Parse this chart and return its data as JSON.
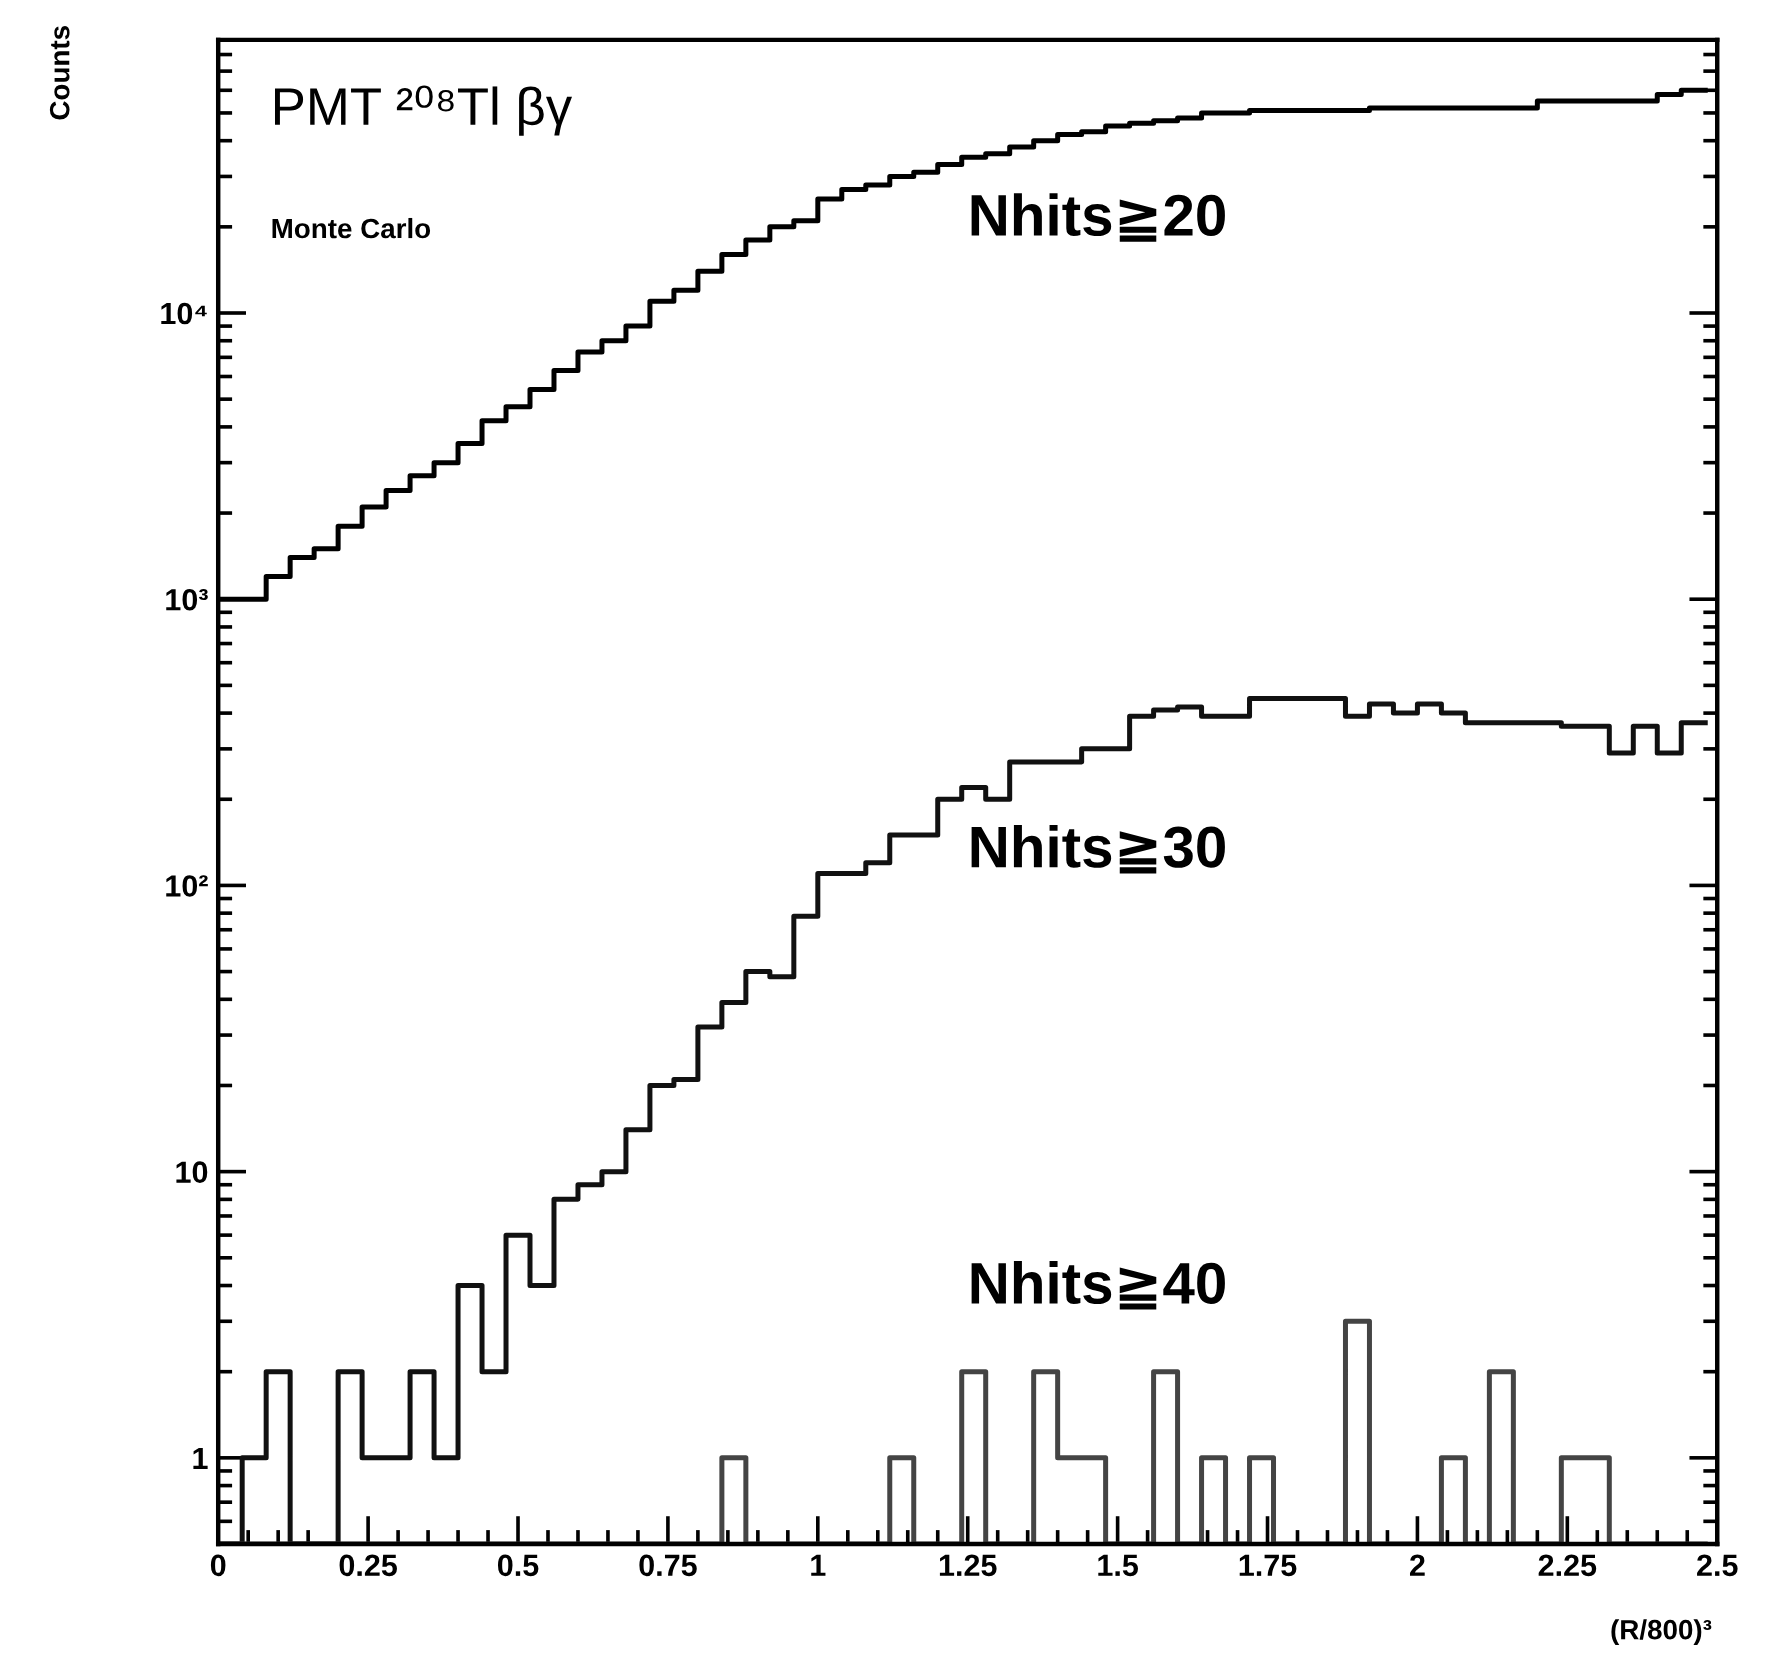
{
  "chart_data": {
    "type": "histogram",
    "title": "PMT ²⁰⁸Tl βγ",
    "subtitle": "Monte Carlo",
    "xlabel": "(R/800)³",
    "ylabel": "Counts",
    "bins": [
      0,
      0.04,
      0.08,
      0.12,
      0.16,
      0.2,
      0.24,
      0.28,
      0.32,
      0.36,
      0.4,
      0.44,
      0.48,
      0.52,
      0.56,
      0.6,
      0.64,
      0.68,
      0.72,
      0.76,
      0.8,
      0.84,
      0.88,
      0.92,
      0.96,
      1,
      1.04,
      1.08,
      1.12,
      1.16,
      1.2,
      1.24,
      1.28,
      1.32,
      1.36,
      1.4,
      1.44,
      1.48,
      1.52,
      1.56,
      1.6,
      1.64,
      1.68,
      1.72,
      1.76,
      1.8,
      1.84,
      1.88,
      1.92,
      1.96,
      2,
      2.04,
      2.08,
      2.12,
      2.16,
      2.2,
      2.24,
      2.28,
      2.32,
      2.36,
      2.4,
      2.44,
      2.48
    ],
    "series": [
      {
        "color": "#000000",
        "values": [
          1000,
          1000,
          1200,
          1400,
          1500,
          1800,
          2100,
          2400,
          2700,
          3000,
          3500,
          4200,
          4700,
          5400,
          6300,
          7300,
          8000,
          9000,
          11000,
          12000,
          14000,
          16000,
          18000,
          20000,
          21000,
          25000,
          27000,
          28000,
          30000,
          31000,
          33000,
          35000,
          36000,
          38000,
          40000,
          42000,
          43000,
          45000,
          46000,
          47000,
          48000,
          50000,
          50000,
          51000,
          51000,
          51000,
          51000,
          51000,
          52000,
          52000,
          52000,
          52000,
          52000,
          52000,
          52000,
          55000,
          55000,
          55000,
          55000,
          55000,
          58000,
          60000
        ]
      },
      {
        "color": "#111111",
        "values": [
          null,
          1,
          2,
          null,
          null,
          2,
          1,
          1,
          2,
          1,
          4,
          2,
          6,
          4,
          8,
          9,
          10,
          14,
          20,
          21,
          32,
          39,
          50,
          48,
          78,
          110,
          110,
          120,
          150,
          150,
          200,
          220,
          200,
          270,
          270,
          270,
          300,
          300,
          390,
          410,
          420,
          390,
          390,
          450,
          450,
          450,
          450,
          390,
          430,
          400,
          430,
          400,
          370,
          370,
          370,
          370,
          360,
          360,
          290,
          360,
          290,
          370
        ]
      },
      {
        "color": "#444444",
        "values": [
          null,
          null,
          null,
          null,
          null,
          null,
          null,
          null,
          null,
          null,
          null,
          null,
          null,
          null,
          null,
          null,
          null,
          null,
          null,
          null,
          null,
          1,
          null,
          null,
          null,
          null,
          null,
          null,
          1,
          null,
          null,
          2,
          null,
          null,
          2,
          1,
          1,
          null,
          null,
          2,
          null,
          1,
          null,
          1,
          null,
          null,
          null,
          3,
          null,
          null,
          null,
          1,
          null,
          2,
          null,
          null,
          1,
          1,
          null,
          null,
          null,
          null
        ]
      }
    ],
    "annotations": [
      "Nhits≧20",
      "Nhits≧30",
      "Nhits≧40"
    ],
    "log": "y",
    "xlim": [
      0,
      2.5
    ],
    "ylim": [
      0.5,
      90000
    ],
    "xticks": [
      0,
      0.25,
      0.5,
      0.75,
      1,
      1.25,
      1.5,
      1.75,
      2,
      2.25,
      2.5
    ],
    "yticks": [
      1,
      10,
      {
        "value": 100,
        "label": "10²"
      },
      {
        "value": 1000,
        "label": "10³"
      },
      {
        "value": 10000,
        "label": "10⁴"
      }
    ]
  }
}
